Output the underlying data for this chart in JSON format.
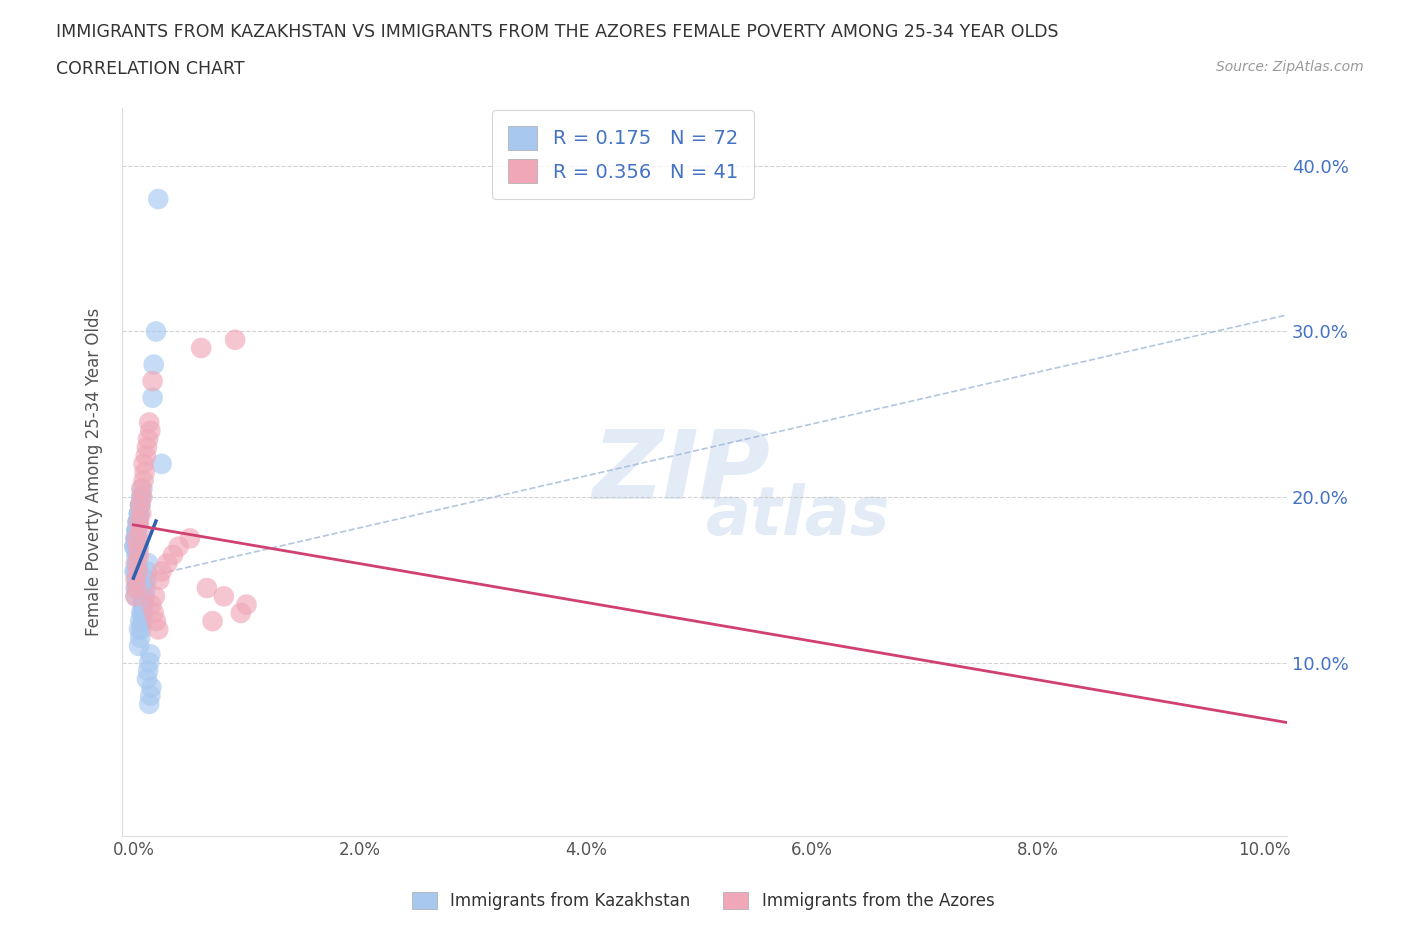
{
  "title_line1": "IMMIGRANTS FROM KAZAKHSTAN VS IMMIGRANTS FROM THE AZORES FEMALE POVERTY AMONG 25-34 YEAR OLDS",
  "title_line2": "CORRELATION CHART",
  "source": "Source: ZipAtlas.com",
  "ylabel": "Female Poverty Among 25-34 Year Olds",
  "xlim": [
    -0.001,
    0.102
  ],
  "ylim": [
    -0.005,
    0.435
  ],
  "ytick_vals": [
    0.1,
    0.2,
    0.3,
    0.4
  ],
  "xtick_vals": [
    0.0,
    0.02,
    0.04,
    0.06,
    0.08,
    0.1
  ],
  "kaz_color": "#a8c8f0",
  "azores_color": "#f0a8b8",
  "kaz_R": 0.175,
  "kaz_N": 72,
  "azores_R": 0.356,
  "azores_N": 41,
  "kaz_line_color": "#3060b0",
  "azores_line_color": "#d04070",
  "dashed_line_color": "#a0b8d8",
  "tick_label_color": "#4472c4",
  "legend_label_kaz": "Immigrants from Kazakhstan",
  "legend_label_azores": "Immigrants from the Azores",
  "kaz_scatter_x": [
    0.0002,
    0.0003,
    0.0002,
    0.0004,
    0.0003,
    0.0002,
    0.0005,
    0.0004,
    0.0003,
    0.0002,
    0.0004,
    0.0003,
    0.0005,
    0.0003,
    0.0002,
    0.0001,
    0.0004,
    0.0003,
    0.0002,
    0.0001,
    0.0005,
    0.0004,
    0.0003,
    0.0002,
    0.0006,
    0.0005,
    0.0004,
    0.0003,
    0.0002,
    0.0001,
    0.0007,
    0.0006,
    0.0005,
    0.0004,
    0.0003,
    0.0008,
    0.0007,
    0.0006,
    0.0005,
    0.0004,
    0.0009,
    0.0008,
    0.0007,
    0.0006,
    0.0005,
    0.001,
    0.0009,
    0.0008,
    0.0006,
    0.0005,
    0.0012,
    0.0011,
    0.001,
    0.0008,
    0.0007,
    0.0013,
    0.0012,
    0.001,
    0.0009,
    0.0008,
    0.0015,
    0.0014,
    0.0013,
    0.0012,
    0.0016,
    0.0015,
    0.0014,
    0.0018,
    0.0017,
    0.002,
    0.0022,
    0.0025
  ],
  "kaz_scatter_y": [
    0.155,
    0.15,
    0.145,
    0.16,
    0.165,
    0.17,
    0.155,
    0.15,
    0.145,
    0.14,
    0.175,
    0.18,
    0.17,
    0.165,
    0.16,
    0.155,
    0.185,
    0.18,
    0.175,
    0.17,
    0.19,
    0.185,
    0.18,
    0.175,
    0.195,
    0.19,
    0.185,
    0.18,
    0.175,
    0.17,
    0.2,
    0.195,
    0.19,
    0.185,
    0.18,
    0.205,
    0.2,
    0.195,
    0.19,
    0.185,
    0.13,
    0.125,
    0.12,
    0.115,
    0.11,
    0.14,
    0.135,
    0.13,
    0.125,
    0.12,
    0.15,
    0.145,
    0.14,
    0.135,
    0.13,
    0.16,
    0.155,
    0.15,
    0.145,
    0.14,
    0.105,
    0.1,
    0.095,
    0.09,
    0.085,
    0.08,
    0.075,
    0.28,
    0.26,
    0.3,
    0.38,
    0.22
  ],
  "azores_scatter_x": [
    0.0002,
    0.0003,
    0.0002,
    0.0004,
    0.0003,
    0.0005,
    0.0004,
    0.0003,
    0.0006,
    0.0005,
    0.0007,
    0.0006,
    0.0008,
    0.0007,
    0.0009,
    0.001,
    0.0009,
    0.0011,
    0.0012,
    0.0013,
    0.0015,
    0.0014,
    0.0016,
    0.0018,
    0.002,
    0.0022,
    0.0025,
    0.003,
    0.0035,
    0.004,
    0.005,
    0.006,
    0.0065,
    0.007,
    0.008,
    0.009,
    0.0095,
    0.01,
    0.0017,
    0.0019,
    0.0023
  ],
  "azores_scatter_y": [
    0.15,
    0.145,
    0.14,
    0.155,
    0.16,
    0.165,
    0.17,
    0.175,
    0.18,
    0.185,
    0.19,
    0.195,
    0.2,
    0.205,
    0.21,
    0.215,
    0.22,
    0.225,
    0.23,
    0.235,
    0.24,
    0.245,
    0.135,
    0.13,
    0.125,
    0.12,
    0.155,
    0.16,
    0.165,
    0.17,
    0.175,
    0.29,
    0.145,
    0.125,
    0.14,
    0.295,
    0.13,
    0.135,
    0.27,
    0.14,
    0.15
  ]
}
